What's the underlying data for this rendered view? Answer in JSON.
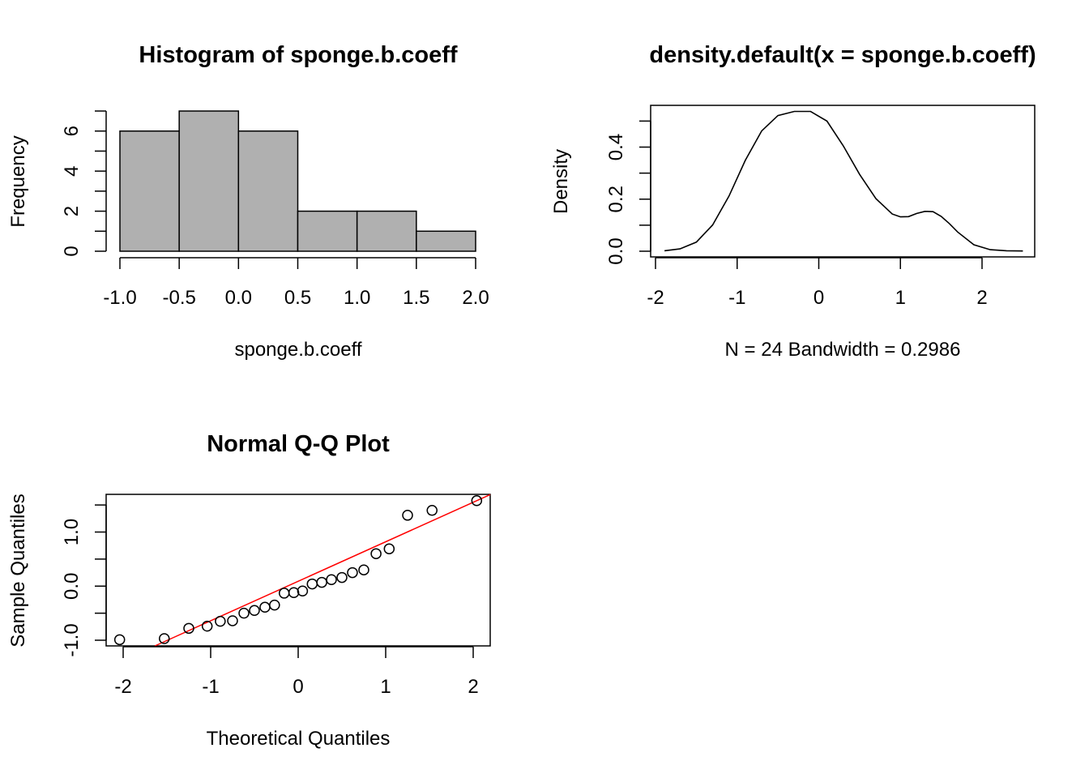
{
  "chart_data": [
    {
      "type": "bar",
      "title": "Histogram of sponge.b.coeff",
      "xlabel": "sponge.b.coeff",
      "ylabel": "Frequency",
      "bins": [
        {
          "from": -1.0,
          "to": -0.5,
          "count": 6
        },
        {
          "from": -0.5,
          "to": 0.0,
          "count": 7
        },
        {
          "from": 0.0,
          "to": 0.5,
          "count": 6
        },
        {
          "from": 0.5,
          "to": 1.0,
          "count": 2
        },
        {
          "from": 1.0,
          "to": 1.5,
          "count": 2
        },
        {
          "from": 1.5,
          "to": 2.0,
          "count": 1
        }
      ],
      "xlim": [
        -1.0,
        2.0
      ],
      "ylim": [
        0,
        7
      ],
      "x_ticks": [
        "-1.0",
        "-0.5",
        "0.0",
        "0.5",
        "1.0",
        "1.5",
        "2.0"
      ],
      "y_ticks": [
        "0",
        "2",
        "4",
        "6"
      ],
      "bar_color": "#b0b0b0"
    },
    {
      "type": "line",
      "title": "density.default(x = sponge.b.coeff)",
      "xlabel": "N = 24   Bandwidth = 0.2986",
      "ylabel": "Density",
      "x": [
        -1.89,
        -1.7,
        -1.5,
        -1.3,
        -1.1,
        -0.9,
        -0.7,
        -0.5,
        -0.3,
        -0.1,
        0.1,
        0.3,
        0.5,
        0.7,
        0.9,
        1.0,
        1.1,
        1.2,
        1.3,
        1.4,
        1.5,
        1.6,
        1.7,
        1.9,
        2.1,
        2.3,
        2.5
      ],
      "y": [
        0.002,
        0.009,
        0.035,
        0.101,
        0.212,
        0.349,
        0.462,
        0.521,
        0.537,
        0.537,
        0.5,
        0.405,
        0.295,
        0.202,
        0.143,
        0.132,
        0.133,
        0.145,
        0.153,
        0.152,
        0.134,
        0.106,
        0.074,
        0.025,
        0.006,
        0.002,
        0.001
      ],
      "xlim": [
        -2.0,
        2.6
      ],
      "ylim": [
        -0.02,
        0.56
      ],
      "x_ticks": [
        "-2",
        "-1",
        "0",
        "1",
        "2"
      ],
      "y_ticks": [
        "0.0",
        "0.2",
        "0.4"
      ],
      "line_color": "#000000"
    },
    {
      "type": "scatter",
      "title": "Normal Q-Q Plot",
      "xlabel": "Theoretical Quantiles",
      "ylabel": "Sample Quantiles",
      "points": {
        "x": [
          -2.04,
          -1.53,
          -1.25,
          -1.04,
          -0.89,
          -0.75,
          -0.62,
          -0.5,
          -0.38,
          -0.27,
          -0.16,
          -0.05,
          0.05,
          0.16,
          0.27,
          0.38,
          0.5,
          0.62,
          0.75,
          0.89,
          1.04,
          1.25,
          1.53,
          2.04
        ],
        "y": [
          -0.99,
          -0.97,
          -0.78,
          -0.74,
          -0.65,
          -0.64,
          -0.5,
          -0.45,
          -0.39,
          -0.35,
          -0.13,
          -0.12,
          -0.09,
          0.04,
          0.07,
          0.12,
          0.16,
          0.25,
          0.3,
          0.6,
          0.69,
          1.31,
          1.4,
          1.58
        ]
      },
      "reference_line": {
        "intercept": 0.09,
        "slope": 0.73
      },
      "xlim": [
        -2.2,
        2.2
      ],
      "ylim": [
        -1.1,
        1.65
      ],
      "x_ticks": [
        "-2",
        "-1",
        "0",
        "1",
        "2"
      ],
      "y_ticks": [
        "-1.0",
        "0.0",
        "1.0"
      ],
      "line_color": "#ff0000"
    }
  ]
}
